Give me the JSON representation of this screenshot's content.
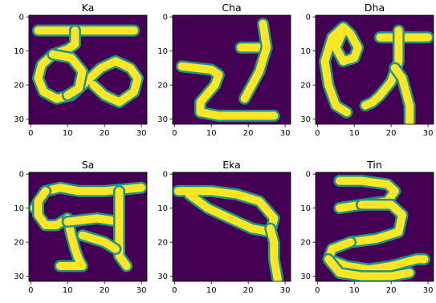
{
  "figure": {
    "background": "#ffffff",
    "image_colormap": "viridis",
    "colors": {
      "background_pixel": "#440154",
      "edge_pixel": "#21918c",
      "stroke_pixel": "#fde725"
    }
  },
  "chart_data": [
    {
      "type": "heatmap",
      "title": "Ka",
      "x_ticks": [
        "0",
        "10",
        "20",
        "30"
      ],
      "y_ticks": [
        "0",
        "10",
        "20",
        "30"
      ],
      "xlim": [
        -0.5,
        31.5
      ],
      "ylim": [
        31.5,
        -0.5
      ],
      "image_size": [
        32,
        32
      ],
      "glyph": "ka"
    },
    {
      "type": "heatmap",
      "title": "Cha",
      "x_ticks": [
        "0",
        "10",
        "20",
        "30"
      ],
      "y_ticks": [
        "0",
        "10",
        "20",
        "30"
      ],
      "xlim": [
        -0.5,
        31.5
      ],
      "ylim": [
        31.5,
        -0.5
      ],
      "image_size": [
        32,
        32
      ],
      "glyph": "cha"
    },
    {
      "type": "heatmap",
      "title": "Dha",
      "x_ticks": [
        "0",
        "10",
        "20",
        "30"
      ],
      "y_ticks": [
        "0",
        "10",
        "20",
        "30"
      ],
      "xlim": [
        -0.5,
        31.5
      ],
      "ylim": [
        31.5,
        -0.5
      ],
      "image_size": [
        32,
        32
      ],
      "glyph": "dha"
    },
    {
      "type": "heatmap",
      "title": "Sa",
      "x_ticks": [
        "0",
        "10",
        "20",
        "30"
      ],
      "y_ticks": [
        "0",
        "10",
        "20",
        "30"
      ],
      "xlim": [
        -0.5,
        31.5
      ],
      "ylim": [
        31.5,
        -0.5
      ],
      "image_size": [
        32,
        32
      ],
      "glyph": "sa"
    },
    {
      "type": "heatmap",
      "title": "Eka",
      "x_ticks": [
        "0",
        "10",
        "20",
        "30"
      ],
      "y_ticks": [
        "0",
        "10",
        "20",
        "30"
      ],
      "xlim": [
        -0.5,
        31.5
      ],
      "ylim": [
        31.5,
        -0.5
      ],
      "image_size": [
        32,
        32
      ],
      "glyph": "eka"
    },
    {
      "type": "heatmap",
      "title": "Tin",
      "x_ticks": [
        "0",
        "10",
        "20",
        "30"
      ],
      "y_ticks": [
        "0",
        "10",
        "20",
        "30"
      ],
      "xlim": [
        -0.5,
        31.5
      ],
      "ylim": [
        31.5,
        -0.5
      ],
      "image_size": [
        32,
        32
      ],
      "glyph": "tin"
    }
  ]
}
